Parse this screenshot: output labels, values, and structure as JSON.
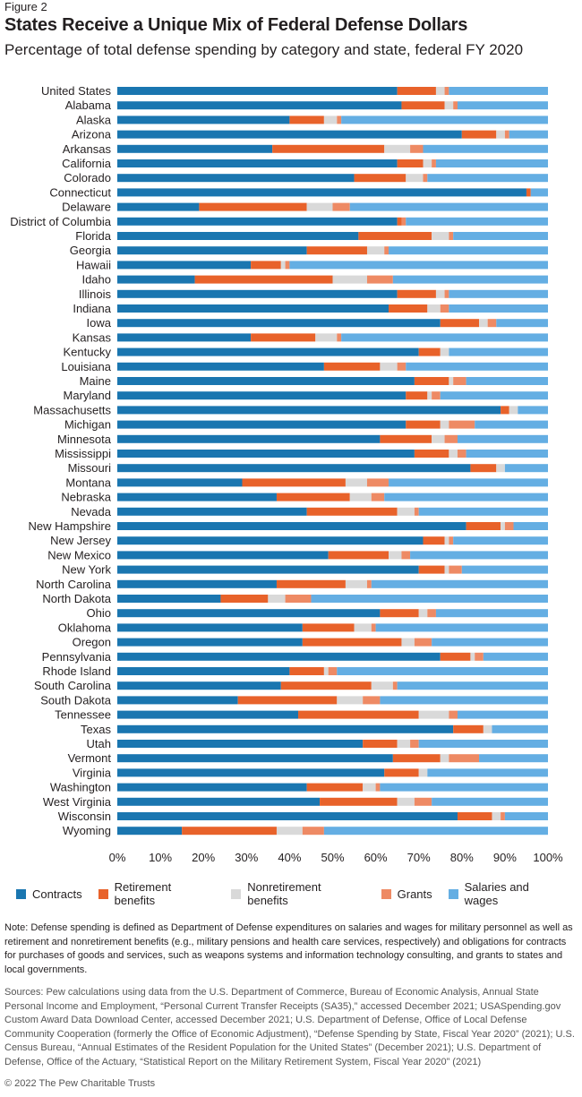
{
  "header": {
    "figure_label": "Figure 2",
    "title": "States Receive a Unique Mix of Federal Defense Dollars",
    "subtitle": "Percentage of total defense spending by category and state, federal FY 2020"
  },
  "colors": {
    "contracts": "#1a76b0",
    "retirement": "#e8622a",
    "nonretirement": "#d9d9d9",
    "grants": "#ee8a64",
    "salaries": "#64aee3"
  },
  "chart_data": {
    "type": "bar",
    "orientation": "horizontal",
    "stacked": true,
    "xlim": [
      0,
      100
    ],
    "x_ticks": [
      "0%",
      "10%",
      "20%",
      "30%",
      "40%",
      "50%",
      "60%",
      "70%",
      "80%",
      "90%",
      "100%"
    ],
    "categories": [
      "United States",
      "Alabama",
      "Alaska",
      "Arizona",
      "Arkansas",
      "California",
      "Colorado",
      "Connecticut",
      "Delaware",
      "District of Columbia",
      "Florida",
      "Georgia",
      "Hawaii",
      "Idaho",
      "Illinois",
      "Indiana",
      "Iowa",
      "Kansas",
      "Kentucky",
      "Louisiana",
      "Maine",
      "Maryland",
      "Massachusetts",
      "Michigan",
      "Minnesota",
      "Mississippi",
      "Missouri",
      "Montana",
      "Nebraska",
      "Nevada",
      "New Hampshire",
      "New Jersey",
      "New Mexico",
      "New York",
      "North Carolina",
      "North Dakota",
      "Ohio",
      "Oklahoma",
      "Oregon",
      "Pennsylvania",
      "Rhode Island",
      "South Carolina",
      "South Dakota",
      "Tennessee",
      "Texas",
      "Utah",
      "Vermont",
      "Virginia",
      "Washington",
      "West Virginia",
      "Wisconsin",
      "Wyoming"
    ],
    "series": [
      {
        "name": "Contracts",
        "color_key": "contracts",
        "values": [
          65,
          66,
          40,
          80,
          36,
          65,
          55,
          95,
          19,
          65,
          56,
          44,
          31,
          18,
          65,
          63,
          75,
          31,
          70,
          48,
          69,
          67,
          89,
          67,
          61,
          69,
          82,
          29,
          37,
          44,
          81,
          71,
          49,
          70,
          37,
          24,
          61,
          43,
          43,
          75,
          40,
          38,
          28,
          42,
          78,
          57,
          64,
          62,
          44,
          47,
          79,
          15
        ]
      },
      {
        "name": "Retirement benefits",
        "color_key": "retirement",
        "values": [
          9,
          10,
          8,
          8,
          26,
          6,
          12,
          1,
          25,
          1,
          17,
          14,
          7,
          32,
          9,
          9,
          9,
          15,
          5,
          13,
          8,
          5,
          2,
          8,
          12,
          8,
          6,
          24,
          17,
          21,
          8,
          5,
          14,
          6,
          16,
          11,
          9,
          12,
          23,
          7,
          8,
          21,
          23,
          28,
          7,
          8,
          11,
          8,
          13,
          18,
          8,
          22
        ]
      },
      {
        "name": "Nonretirement benefits",
        "color_key": "nonretirement",
        "values": [
          2,
          2,
          3,
          2,
          6,
          2,
          4,
          0,
          6,
          0,
          4,
          4,
          1,
          8,
          2,
          3,
          2,
          5,
          2,
          4,
          1,
          1,
          2,
          2,
          3,
          2,
          2,
          5,
          5,
          4,
          1,
          1,
          3,
          1,
          5,
          4,
          2,
          4,
          3,
          1,
          1,
          5,
          6,
          7,
          2,
          3,
          2,
          2,
          3,
          4,
          2,
          6
        ]
      },
      {
        "name": "Grants",
        "color_key": "grants",
        "values": [
          1,
          1,
          1,
          1,
          3,
          1,
          1,
          0,
          4,
          1,
          1,
          1,
          1,
          6,
          1,
          2,
          2,
          1,
          0,
          2,
          3,
          2,
          0,
          6,
          3,
          2,
          0,
          5,
          3,
          1,
          2,
          1,
          2,
          3,
          1,
          6,
          2,
          1,
          4,
          2,
          2,
          1,
          4,
          2,
          0,
          2,
          7,
          0,
          1,
          4,
          1,
          5
        ]
      },
      {
        "name": "Salaries and wages",
        "color_key": "salaries",
        "values": [
          23,
          21,
          48,
          9,
          29,
          26,
          28,
          4,
          46,
          33,
          22,
          37,
          60,
          36,
          23,
          23,
          12,
          48,
          23,
          33,
          19,
          25,
          7,
          17,
          21,
          19,
          10,
          37,
          38,
          30,
          8,
          22,
          32,
          20,
          41,
          55,
          26,
          40,
          27,
          15,
          49,
          35,
          39,
          21,
          13,
          30,
          16,
          28,
          39,
          27,
          10,
          52
        ]
      }
    ]
  },
  "note": "Note: Defense spending is defined as Department of Defense expenditures on salaries and wages for military personnel as well as retirement and nonretirement benefits (e.g., military pensions and health care services, respectively) and obligations for contracts for purchases of goods and services, such as weapons systems and information technology consulting, and grants to states and local governments.",
  "sources": "Sources: Pew calculations using data from the U.S. Department of Commerce, Bureau of Economic Analysis, Annual State Personal Income and Employment, “Personal Current Transfer Receipts (SA35),” accessed December 2021; USASpending.gov Custom Award Data Download Center, accessed December 2021; U.S. Department of Defense, Office of Local Defense Community Cooperation (formerly the Office of Economic Adjustment), “Defense Spending by State, Fiscal Year 2020” (2021); U.S. Census Bureau, “Annual Estimates of the Resident Population for the United States” (December 2021); U.S. Department of Defense, Office of the Actuary, “Statistical Report on the Military Retirement System, Fiscal Year 2020” (2021)",
  "copyright": "© 2022 The Pew Charitable Trusts"
}
